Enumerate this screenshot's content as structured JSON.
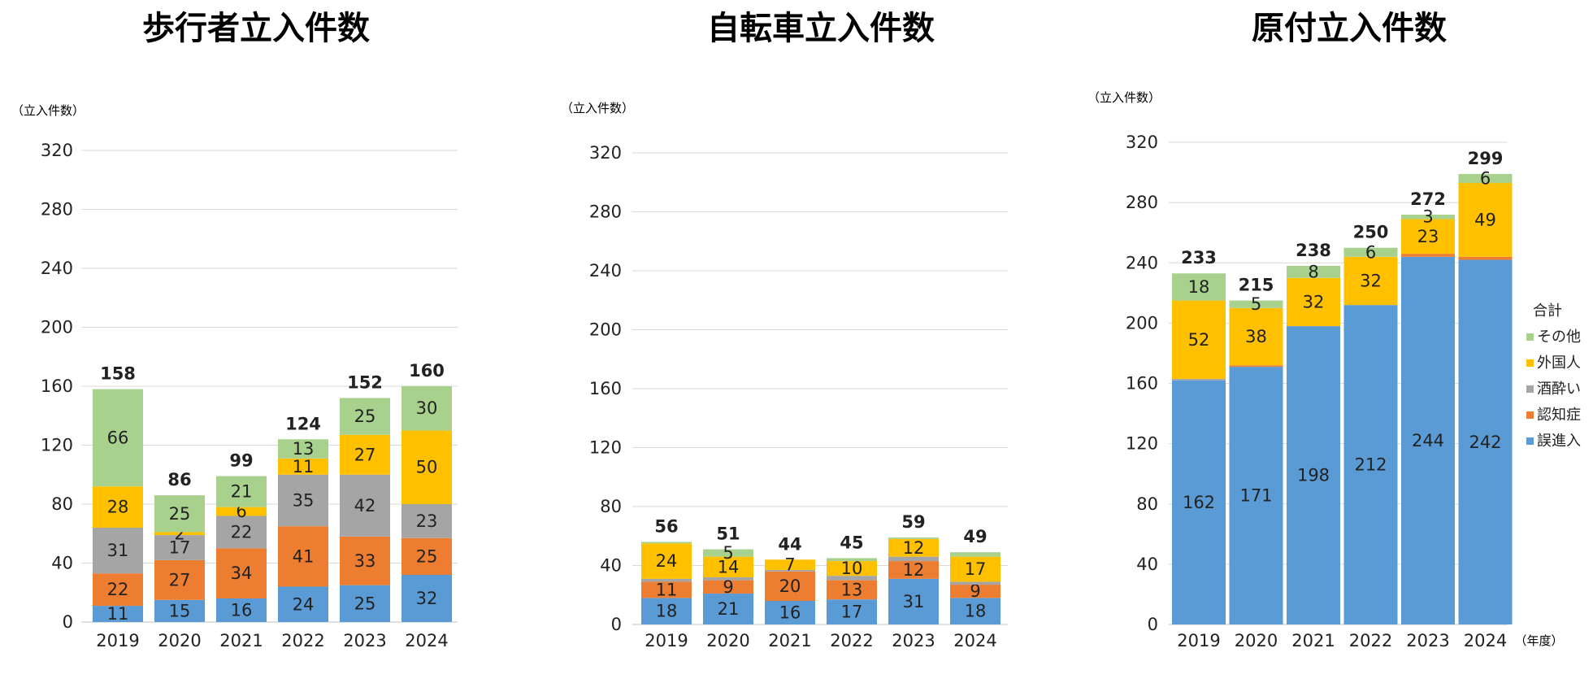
{
  "chart_data": [
    {
      "type": "bar",
      "stacked": true,
      "title": "歩行者立入件数",
      "ylabel": "（立入件数）",
      "xlabel": "",
      "categories": [
        "2019",
        "2020",
        "2021",
        "2022",
        "2023",
        "2024"
      ],
      "ylim": [
        0,
        320
      ],
      "yticks": [
        0,
        40,
        80,
        120,
        160,
        200,
        240,
        280,
        320
      ],
      "grid": true,
      "series": [
        {
          "name": "誤進入",
          "color": "#5b9bd5",
          "values": [
            11,
            15,
            16,
            24,
            25,
            32
          ]
        },
        {
          "name": "認知症",
          "color": "#ed7d31",
          "values": [
            22,
            27,
            34,
            41,
            33,
            25
          ]
        },
        {
          "name": "酒酔い",
          "color": "#a5a5a5",
          "values": [
            31,
            17,
            22,
            35,
            42,
            23
          ]
        },
        {
          "name": "外国人",
          "color": "#ffc000",
          "values": [
            28,
            2,
            6,
            11,
            27,
            50
          ]
        },
        {
          "name": "その他",
          "color": "#a9d18e",
          "values": [
            66,
            25,
            21,
            13,
            25,
            30
          ]
        }
      ],
      "totals": [
        158,
        86,
        99,
        124,
        152,
        160
      ]
    },
    {
      "type": "bar",
      "stacked": true,
      "title": "自転車立入件数",
      "ylabel": "（立入件数）",
      "xlabel": "",
      "categories": [
        "2019",
        "2020",
        "2021",
        "2022",
        "2023",
        "2024"
      ],
      "ylim": [
        0,
        320
      ],
      "yticks": [
        0,
        40,
        80,
        120,
        160,
        200,
        240,
        280,
        320
      ],
      "grid": true,
      "series": [
        {
          "name": "誤進入",
          "color": "#5b9bd5",
          "values": [
            18,
            21,
            16,
            17,
            31,
            18
          ]
        },
        {
          "name": "認知症",
          "color": "#ed7d31",
          "values": [
            11,
            9,
            20,
            13,
            12,
            9
          ]
        },
        {
          "name": "酒酔い",
          "color": "#a5a5a5",
          "values": [
            2,
            2,
            1,
            3,
            3,
            2
          ]
        },
        {
          "name": "外国人",
          "color": "#ffc000",
          "values": [
            24,
            14,
            7,
            10,
            12,
            17
          ]
        },
        {
          "name": "その他",
          "color": "#a9d18e",
          "values": [
            1,
            5,
            0,
            2,
            1,
            3
          ]
        }
      ],
      "label_min": 5,
      "totals": [
        56,
        51,
        44,
        45,
        59,
        49
      ]
    },
    {
      "type": "bar",
      "stacked": true,
      "title": "原付立入件数",
      "ylabel": "（立入件数）",
      "xlabel": "（年度）",
      "categories": [
        "2019",
        "2020",
        "2021",
        "2022",
        "2023",
        "2024"
      ],
      "ylim": [
        0,
        320
      ],
      "yticks": [
        0,
        40,
        80,
        120,
        160,
        200,
        240,
        280,
        320
      ],
      "grid": true,
      "series": [
        {
          "name": "誤進入",
          "color": "#5b9bd5",
          "values": [
            162,
            171,
            198,
            212,
            244,
            242
          ]
        },
        {
          "name": "認知症",
          "color": "#ed7d31",
          "values": [
            0,
            1,
            0,
            0,
            2,
            2
          ]
        },
        {
          "name": "酒酔い",
          "color": "#a5a5a5",
          "values": [
            1,
            0,
            0,
            0,
            0,
            0
          ]
        },
        {
          "name": "外国人",
          "color": "#ffc000",
          "values": [
            52,
            38,
            32,
            32,
            23,
            49
          ]
        },
        {
          "name": "その他",
          "color": "#a9d18e",
          "values": [
            18,
            5,
            8,
            6,
            3,
            6
          ]
        }
      ],
      "label_min": 3,
      "totals": [
        233,
        215,
        238,
        250,
        272,
        299
      ],
      "legend": {
        "title": "合計",
        "placement": "right",
        "order": [
          "その他",
          "外国人",
          "酒酔い",
          "認知症",
          "誤進入"
        ]
      }
    }
  ]
}
